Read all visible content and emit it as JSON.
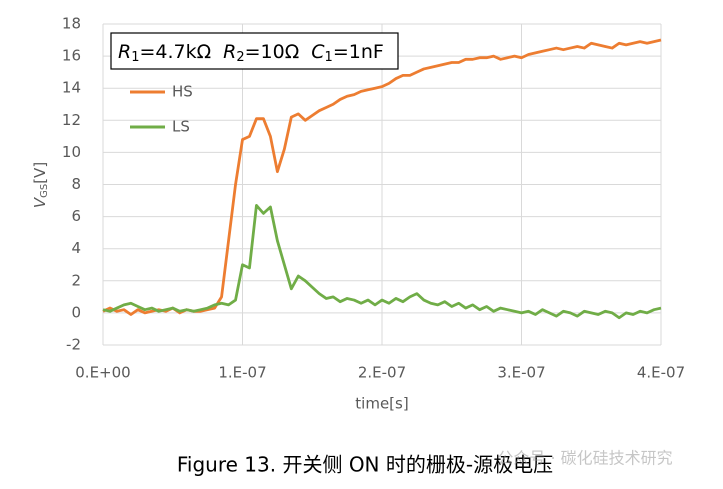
{
  "chart_data": {
    "type": "line",
    "annotation": [
      {
        "symbol": "R",
        "sub": "1",
        "text": "=4.7kΩ"
      },
      {
        "symbol": "R",
        "sub": "2",
        "text": "=10Ω"
      },
      {
        "symbol": "C",
        "sub": "1",
        "text": "=1nF"
      }
    ],
    "y_label": {
      "symbol": "V",
      "sub": "GS",
      "unit": "[V]"
    },
    "x_label": "time[s]",
    "caption": "Figure 13.  开关侧 ON 时的栅极-源极电压",
    "watermark": "公众号 · 碳化硅技术研究",
    "legend": "upper left",
    "grid": true,
    "xlim": [
      0,
      4e-07
    ],
    "xticks": [
      {
        "value": 0,
        "label": "0.E+00"
      },
      {
        "value": 1e-07,
        "label": "1.E-07"
      },
      {
        "value": 2e-07,
        "label": "2.E-07"
      },
      {
        "value": 3e-07,
        "label": "3.E-07"
      },
      {
        "value": 4e-07,
        "label": "4.E-07"
      }
    ],
    "ylim": [
      -2,
      18
    ],
    "yticks": [
      -2,
      0,
      2,
      4,
      6,
      8,
      10,
      12,
      14,
      16,
      18
    ],
    "x": [
      0,
      5e-09,
      1e-08,
      1.5e-08,
      2e-08,
      2.5e-08,
      3e-08,
      3.5e-08,
      4e-08,
      4.5e-08,
      5e-08,
      5.5e-08,
      6e-08,
      6.5e-08,
      7e-08,
      7.5e-08,
      8e-08,
      8.5e-08,
      9e-08,
      9.5e-08,
      1e-07,
      1.05e-07,
      1.1e-07,
      1.15e-07,
      1.2e-07,
      1.25e-07,
      1.3e-07,
      1.35e-07,
      1.4e-07,
      1.45e-07,
      1.5e-07,
      1.55e-07,
      1.6e-07,
      1.65e-07,
      1.7e-07,
      1.75e-07,
      1.8e-07,
      1.85e-07,
      1.9e-07,
      1.95e-07,
      2e-07,
      2.05e-07,
      2.1e-07,
      2.15e-07,
      2.2e-07,
      2.25e-07,
      2.3e-07,
      2.35e-07,
      2.4e-07,
      2.45e-07,
      2.5e-07,
      2.55e-07,
      2.6e-07,
      2.65e-07,
      2.7e-07,
      2.75e-07,
      2.8e-07,
      2.85e-07,
      2.9e-07,
      2.95e-07,
      3e-07,
      3.05e-07,
      3.1e-07,
      3.15e-07,
      3.2e-07,
      3.25e-07,
      3.3e-07,
      3.35e-07,
      3.4e-07,
      3.45e-07,
      3.5e-07,
      3.55e-07,
      3.6e-07,
      3.65e-07,
      3.7e-07,
      3.75e-07,
      3.8e-07,
      3.85e-07,
      3.9e-07,
      3.95e-07,
      4e-07
    ],
    "series": [
      {
        "name": "HS",
        "color": "#ed7d31",
        "values": [
          0.1,
          0.3,
          0.1,
          0.2,
          -0.1,
          0.2,
          0.0,
          0.1,
          0.2,
          0.1,
          0.3,
          0.0,
          0.2,
          0.1,
          0.1,
          0.2,
          0.3,
          1.0,
          4.5,
          8.0,
          10.8,
          11.0,
          12.1,
          12.1,
          11.0,
          8.8,
          10.2,
          12.2,
          12.4,
          12.0,
          12.3,
          12.6,
          12.8,
          13.0,
          13.3,
          13.5,
          13.6,
          13.8,
          13.9,
          14.0,
          14.1,
          14.3,
          14.6,
          14.8,
          14.8,
          15.0,
          15.2,
          15.3,
          15.4,
          15.5,
          15.6,
          15.6,
          15.8,
          15.8,
          15.9,
          15.9,
          16.0,
          15.8,
          15.9,
          16.0,
          15.9,
          16.1,
          16.2,
          16.3,
          16.4,
          16.5,
          16.4,
          16.5,
          16.6,
          16.5,
          16.8,
          16.7,
          16.6,
          16.5,
          16.8,
          16.7,
          16.8,
          16.9,
          16.8,
          16.9,
          17.0
        ]
      },
      {
        "name": "LS",
        "color": "#70ad47",
        "values": [
          0.2,
          0.1,
          0.3,
          0.5,
          0.6,
          0.4,
          0.2,
          0.3,
          0.1,
          0.2,
          0.3,
          0.1,
          0.2,
          0.1,
          0.2,
          0.3,
          0.5,
          0.6,
          0.5,
          0.8,
          3.0,
          2.8,
          6.7,
          6.2,
          6.6,
          4.5,
          3.0,
          1.5,
          2.3,
          2.0,
          1.6,
          1.2,
          0.9,
          1.0,
          0.7,
          0.9,
          0.8,
          0.6,
          0.8,
          0.5,
          0.8,
          0.6,
          0.9,
          0.7,
          1.0,
          1.2,
          0.8,
          0.6,
          0.5,
          0.7,
          0.4,
          0.6,
          0.3,
          0.5,
          0.2,
          0.4,
          0.1,
          0.3,
          0.2,
          0.1,
          0.0,
          0.1,
          -0.1,
          0.2,
          0.0,
          -0.2,
          0.1,
          0.0,
          -0.2,
          0.1,
          0.0,
          -0.1,
          0.1,
          0.0,
          -0.3,
          0.0,
          -0.1,
          0.1,
          0.0,
          0.2,
          0.3
        ]
      }
    ]
  }
}
